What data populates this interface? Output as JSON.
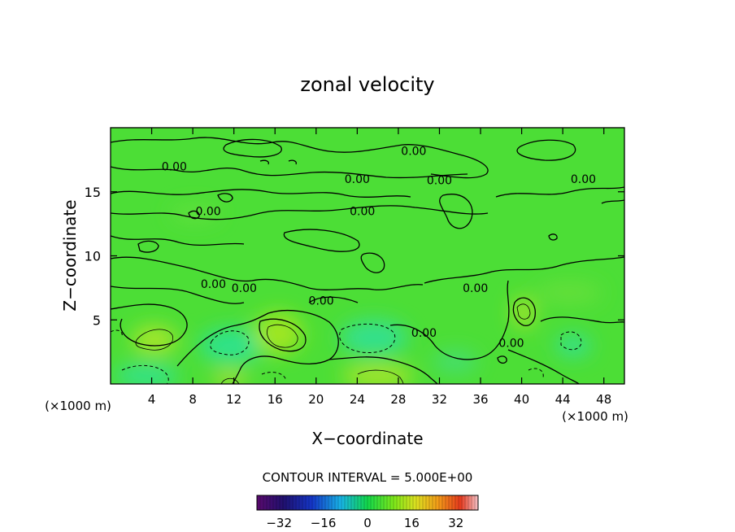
{
  "chart_data": {
    "type": "contour",
    "title": "zonal velocity",
    "xlabel": "X−coordinate",
    "ylabel": "Z−coordinate",
    "x_unit_left": "(×1000 m)",
    "x_unit_right": "(×1000 m)",
    "xlim": [
      0,
      50
    ],
    "ylim": [
      0,
      20
    ],
    "x_ticks": [
      4,
      8,
      12,
      16,
      20,
      24,
      28,
      32,
      36,
      40,
      44,
      48
    ],
    "y_ticks": [
      5,
      10,
      15
    ],
    "contour_interval_label": "CONTOUR INTERVAL = 5.000E+00",
    "contour_label_text": "0.00",
    "contour_labels": [
      {
        "x": 6.2,
        "y": 17.0
      },
      {
        "x": 9.5,
        "y": 13.5
      },
      {
        "x": 24.0,
        "y": 16.0
      },
      {
        "x": 24.5,
        "y": 13.5
      },
      {
        "x": 29.5,
        "y": 18.2
      },
      {
        "x": 32.0,
        "y": 15.9
      },
      {
        "x": 46.0,
        "y": 16.0
      },
      {
        "x": 10.0,
        "y": 7.8
      },
      {
        "x": 13.0,
        "y": 7.5
      },
      {
        "x": 20.5,
        "y": 6.5
      },
      {
        "x": 30.5,
        "y": 4.0
      },
      {
        "x": 35.5,
        "y": 7.5
      },
      {
        "x": 39.0,
        "y": 3.2
      }
    ],
    "colorbar": {
      "ticks": [
        -32,
        -16,
        0,
        16,
        32
      ],
      "tick_labels": [
        "−32",
        "−16",
        "0",
        "16",
        "32"
      ],
      "range": [
        -40,
        40
      ]
    },
    "field_color_range": "green (~0) with cyan lows (about -5 to -10) and yellow-green highs (about +5 to +10)"
  }
}
